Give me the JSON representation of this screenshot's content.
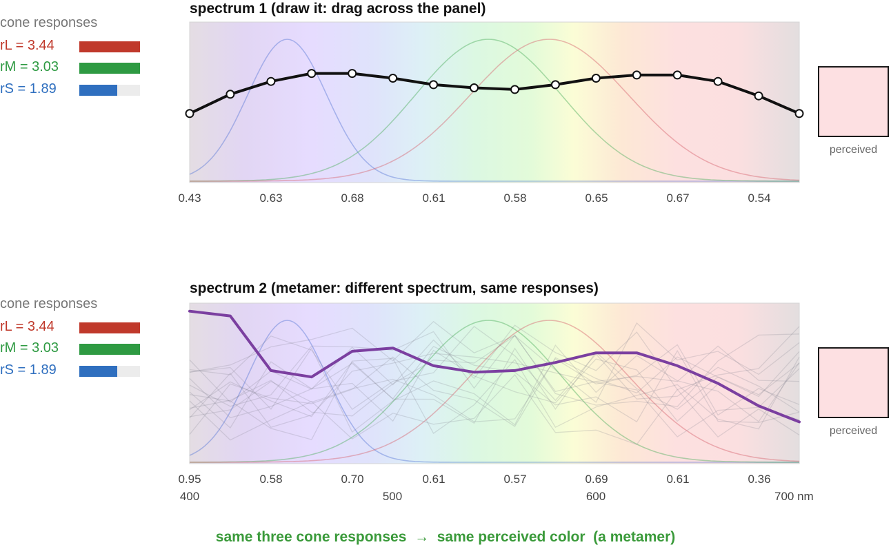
{
  "panels": [
    {
      "title": "spectrum 1 (draw it: drag across the panel)",
      "cone_responses": {
        "title": "cone responses",
        "rows": [
          {
            "label": "rL = 3.44",
            "fraction": 1.0,
            "color": "#c0392b"
          },
          {
            "label": "rM = 3.03",
            "fraction": 1.0,
            "color": "#2e9a42"
          },
          {
            "label": "rS = 1.89",
            "fraction": 0.63,
            "color": "#2f6fbf"
          }
        ]
      },
      "value_labels": [
        "0.43",
        "0.63",
        "0.68",
        "0.61",
        "0.58",
        "0.65",
        "0.67",
        "0.54"
      ],
      "spectrum_values": [
        0.43,
        0.55,
        0.63,
        0.68,
        0.68,
        0.65,
        0.61,
        0.59,
        0.58,
        0.61,
        0.65,
        0.67,
        0.67,
        0.63,
        0.54,
        0.43
      ],
      "line_color": "#111111",
      "show_handles": true,
      "perceived_label": "perceived",
      "perceived_color": "#fde0e2"
    },
    {
      "title": "spectrum 2 (metamer: different spectrum, same responses)",
      "cone_responses": {
        "title": "cone responses",
        "rows": [
          {
            "label": "rL = 3.44",
            "fraction": 1.0,
            "color": "#c0392b"
          },
          {
            "label": "rM = 3.03",
            "fraction": 1.0,
            "color": "#2e9a42"
          },
          {
            "label": "rS = 1.89",
            "fraction": 0.63,
            "color": "#2f6fbf"
          }
        ]
      },
      "value_labels": [
        "0.95",
        "0.58",
        "0.70",
        "0.61",
        "0.57",
        "0.69",
        "0.61",
        "0.36"
      ],
      "spectrum_values": [
        0.95,
        0.92,
        0.58,
        0.54,
        0.7,
        0.72,
        0.61,
        0.57,
        0.58,
        0.63,
        0.69,
        0.69,
        0.61,
        0.5,
        0.36,
        0.26
      ],
      "line_color": "#7b3fa0",
      "show_handles": false,
      "wavelength_labels": [
        "400",
        "500",
        "600",
        "700 nm"
      ],
      "perceived_label": "perceived",
      "perceived_color": "#fde0e2"
    }
  ],
  "footer": {
    "text": "same three cone responses  →  same perceived color  (a metamer)",
    "color": "#3a9a3a"
  }
}
